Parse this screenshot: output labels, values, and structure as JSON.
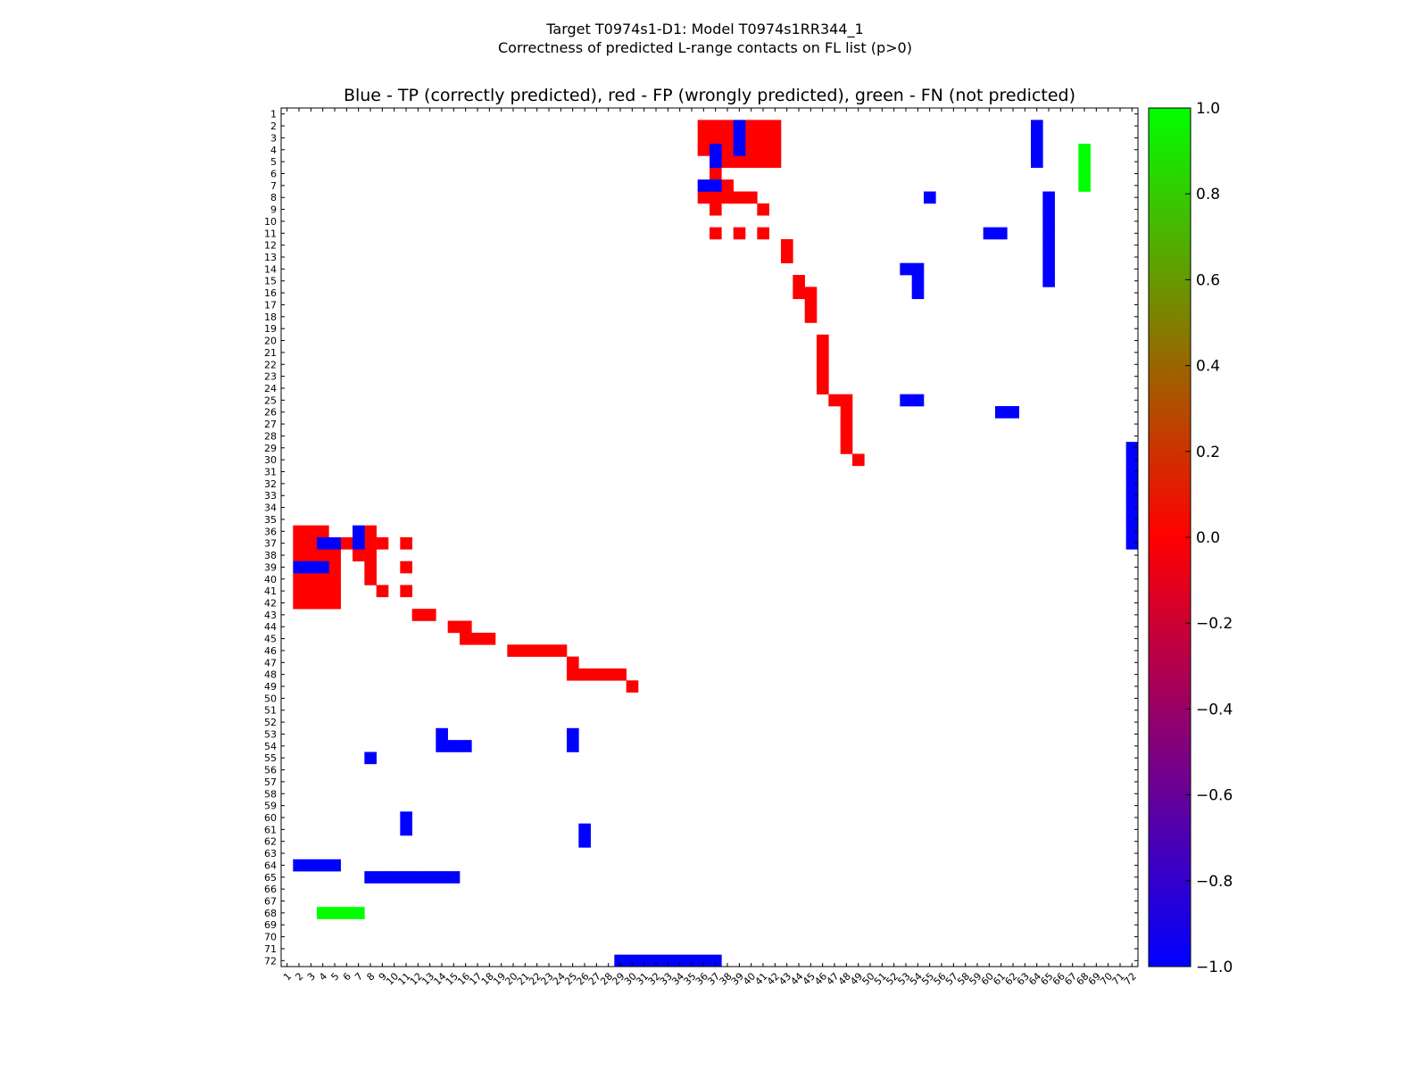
{
  "chart_data": {
    "type": "heatmap",
    "suptitle_line1": "Target T0974s1-D1: Model T0974s1RR344_1",
    "suptitle_line2": "Correctness of predicted L-range contacts on FL list (p>0)",
    "title": "Blue - TP (correctly predicted), red - FP (wrongly predicted), green - FN (not predicted)",
    "xlabel": "",
    "ylabel": "",
    "n": 72,
    "x_range": [
      1,
      72
    ],
    "y_range": [
      1,
      72
    ],
    "legend": "none",
    "colorbar": {
      "range": [
        -1.0,
        1.0
      ],
      "ticks": [
        "1.0",
        "0.8",
        "0.6",
        "0.4",
        "0.2",
        "0.0",
        "−0.2",
        "−0.4",
        "−0.6",
        "−0.8",
        "−1.0"
      ],
      "colors": [
        "#0000ff",
        "#ff0000",
        "#00ff00"
      ]
    },
    "categories": {
      "TP": {
        "value": -1,
        "color": "#0000ff"
      },
      "FP": {
        "value": 0,
        "color": "#ff0000"
      },
      "FN": {
        "value": 1,
        "color": "#00ff00"
      }
    },
    "cells_note": "[residue_x, residue_y] pairs; matrix shown symmetric (lower triangle mirrored)",
    "tp_cells": [
      [
        2,
        39
      ],
      [
        3,
        39
      ],
      [
        4,
        37
      ],
      [
        4,
        39
      ],
      [
        5,
        37
      ],
      [
        7,
        36
      ],
      [
        7,
        37
      ],
      [
        8,
        55
      ],
      [
        11,
        60
      ],
      [
        11,
        61
      ],
      [
        14,
        53
      ],
      [
        14,
        54
      ],
      [
        15,
        54
      ],
      [
        16,
        54
      ],
      [
        25,
        54
      ],
      [
        25,
        53
      ],
      [
        26,
        61
      ],
      [
        26,
        62
      ],
      [
        29,
        72
      ],
      [
        30,
        72
      ],
      [
        31,
        72
      ],
      [
        32,
        72
      ],
      [
        33,
        72
      ],
      [
        34,
        72
      ],
      [
        35,
        72
      ],
      [
        36,
        72
      ],
      [
        37,
        72
      ],
      [
        2,
        64
      ],
      [
        3,
        64
      ],
      [
        4,
        64
      ],
      [
        5,
        64
      ],
      [
        8,
        65
      ],
      [
        9,
        65
      ],
      [
        10,
        65
      ],
      [
        11,
        65
      ],
      [
        12,
        65
      ],
      [
        13,
        65
      ],
      [
        14,
        65
      ],
      [
        15,
        65
      ]
    ],
    "fp_cells": [
      [
        2,
        36
      ],
      [
        2,
        37
      ],
      [
        2,
        38
      ],
      [
        2,
        40
      ],
      [
        2,
        41
      ],
      [
        2,
        42
      ],
      [
        3,
        36
      ],
      [
        3,
        37
      ],
      [
        3,
        38
      ],
      [
        3,
        40
      ],
      [
        3,
        41
      ],
      [
        3,
        42
      ],
      [
        4,
        36
      ],
      [
        4,
        38
      ],
      [
        4,
        40
      ],
      [
        4,
        41
      ],
      [
        4,
        42
      ],
      [
        5,
        38
      ],
      [
        5,
        39
      ],
      [
        5,
        40
      ],
      [
        5,
        41
      ],
      [
        5,
        42
      ],
      [
        6,
        37
      ],
      [
        7,
        38
      ],
      [
        8,
        36
      ],
      [
        8,
        37
      ],
      [
        8,
        38
      ],
      [
        8,
        39
      ],
      [
        8,
        40
      ],
      [
        9,
        37
      ],
      [
        9,
        41
      ],
      [
        11,
        37
      ],
      [
        11,
        39
      ],
      [
        11,
        41
      ],
      [
        12,
        43
      ],
      [
        13,
        43
      ],
      [
        15,
        44
      ],
      [
        16,
        44
      ],
      [
        16,
        45
      ],
      [
        17,
        45
      ],
      [
        18,
        45
      ],
      [
        20,
        46
      ],
      [
        21,
        46
      ],
      [
        22,
        46
      ],
      [
        23,
        46
      ],
      [
        24,
        46
      ],
      [
        25,
        47
      ],
      [
        25,
        48
      ],
      [
        26,
        48
      ],
      [
        27,
        48
      ],
      [
        28,
        48
      ],
      [
        29,
        48
      ],
      [
        30,
        49
      ]
    ],
    "fn_cells": [
      [
        4,
        68
      ],
      [
        5,
        68
      ],
      [
        6,
        68
      ],
      [
        7,
        68
      ]
    ],
    "x_ticks": [
      "1",
      "2",
      "3",
      "4",
      "5",
      "6",
      "7",
      "8",
      "9",
      "10",
      "11",
      "12",
      "13",
      "14",
      "15",
      "16",
      "17",
      "18",
      "19",
      "20",
      "21",
      "22",
      "23",
      "24",
      "25",
      "26",
      "27",
      "28",
      "29",
      "30",
      "31",
      "32",
      "33",
      "34",
      "35",
      "36",
      "37",
      "38",
      "39",
      "40",
      "41",
      "42",
      "43",
      "44",
      "45",
      "46",
      "47",
      "48",
      "49",
      "50",
      "51",
      "52",
      "53",
      "54",
      "55",
      "56",
      "57",
      "58",
      "59",
      "60",
      "61",
      "62",
      "63",
      "64",
      "65",
      "66",
      "67",
      "68",
      "69",
      "70",
      "71",
      "72"
    ],
    "y_ticks": [
      "1",
      "2",
      "3",
      "4",
      "5",
      "6",
      "7",
      "8",
      "9",
      "10",
      "11",
      "12",
      "13",
      "14",
      "15",
      "16",
      "17",
      "18",
      "19",
      "20",
      "21",
      "22",
      "23",
      "24",
      "25",
      "26",
      "27",
      "28",
      "29",
      "30",
      "31",
      "32",
      "33",
      "34",
      "35",
      "36",
      "37",
      "38",
      "39",
      "40",
      "41",
      "42",
      "43",
      "44",
      "45",
      "46",
      "47",
      "48",
      "49",
      "50",
      "51",
      "52",
      "53",
      "54",
      "55",
      "56",
      "57",
      "58",
      "59",
      "60",
      "61",
      "62",
      "63",
      "64",
      "65",
      "66",
      "67",
      "68",
      "69",
      "70",
      "71",
      "72"
    ]
  }
}
